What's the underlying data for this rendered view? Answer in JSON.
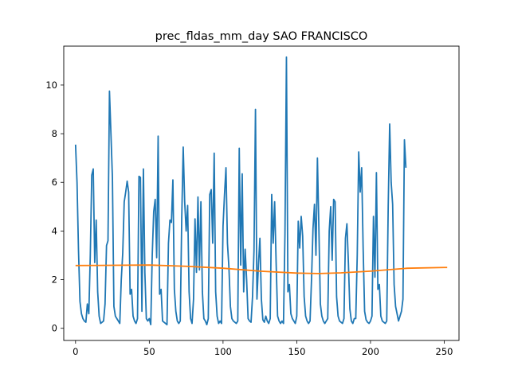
{
  "chart_data": {
    "type": "line",
    "title": "prec_fldas_mm_day SAO FRANCISCO",
    "xlabel": "",
    "ylabel": "",
    "xlim": [
      -8,
      260
    ],
    "ylim": [
      -0.5,
      11.6
    ],
    "xticks": [
      0,
      50,
      100,
      150,
      200,
      250
    ],
    "yticks": [
      0,
      2,
      4,
      6,
      8,
      10
    ],
    "grid": false,
    "legend": "none",
    "colors": {
      "series_1": "#1f77b4",
      "series_2": "#ff7f0e"
    },
    "series": [
      {
        "points": [
          [
            0,
            7.55
          ],
          [
            1,
            6.0
          ],
          [
            2,
            3.2
          ],
          [
            3,
            1.1
          ],
          [
            4,
            0.6
          ],
          [
            5,
            0.4
          ],
          [
            6,
            0.3
          ],
          [
            7,
            0.25
          ],
          [
            8,
            1.0
          ],
          [
            9,
            0.6
          ],
          [
            10,
            3.0
          ],
          [
            11,
            6.3
          ],
          [
            12,
            6.55
          ],
          [
            13,
            2.7
          ],
          [
            14,
            4.45
          ],
          [
            15,
            1.5
          ],
          [
            16,
            0.5
          ],
          [
            17,
            0.2
          ],
          [
            18,
            0.25
          ],
          [
            19,
            0.3
          ],
          [
            20,
            1.0
          ],
          [
            21,
            3.4
          ],
          [
            22,
            3.6
          ],
          [
            23,
            9.75
          ],
          [
            24,
            8.0
          ],
          [
            25,
            6.2
          ],
          [
            26,
            0.9
          ],
          [
            27,
            0.5
          ],
          [
            28,
            0.4
          ],
          [
            29,
            0.3
          ],
          [
            30,
            0.2
          ],
          [
            31,
            2.0
          ],
          [
            32,
            3.1
          ],
          [
            33,
            5.2
          ],
          [
            34,
            5.6
          ],
          [
            35,
            6.05
          ],
          [
            36,
            5.6
          ],
          [
            37,
            1.4
          ],
          [
            38,
            1.6
          ],
          [
            39,
            0.5
          ],
          [
            40,
            0.3
          ],
          [
            41,
            0.2
          ],
          [
            42,
            0.4
          ],
          [
            43,
            6.25
          ],
          [
            44,
            6.2
          ],
          [
            45,
            0.7
          ],
          [
            46,
            6.55
          ],
          [
            47,
            2.3
          ],
          [
            48,
            0.4
          ],
          [
            49,
            0.3
          ],
          [
            50,
            0.4
          ],
          [
            51,
            0.15
          ],
          [
            52,
            3.0
          ],
          [
            53,
            4.8
          ],
          [
            54,
            5.3
          ],
          [
            55,
            2.9
          ],
          [
            56,
            7.9
          ],
          [
            57,
            1.4
          ],
          [
            58,
            1.6
          ],
          [
            59,
            0.3
          ],
          [
            60,
            0.25
          ],
          [
            61,
            0.2
          ],
          [
            62,
            0.15
          ],
          [
            63,
            3.5
          ],
          [
            64,
            4.45
          ],
          [
            65,
            4.35
          ],
          [
            66,
            6.1
          ],
          [
            67,
            1.6
          ],
          [
            68,
            0.7
          ],
          [
            69,
            0.3
          ],
          [
            70,
            0.2
          ],
          [
            71,
            0.3
          ],
          [
            72,
            4.5
          ],
          [
            73,
            7.45
          ],
          [
            74,
            5.2
          ],
          [
            75,
            4.0
          ],
          [
            76,
            5.05
          ],
          [
            77,
            1.5
          ],
          [
            78,
            0.4
          ],
          [
            79,
            0.2
          ],
          [
            80,
            1.2
          ],
          [
            81,
            4.5
          ],
          [
            82,
            2.3
          ],
          [
            83,
            5.4
          ],
          [
            84,
            2.4
          ],
          [
            85,
            5.2
          ],
          [
            86,
            1.5
          ],
          [
            87,
            0.4
          ],
          [
            88,
            0.3
          ],
          [
            89,
            0.15
          ],
          [
            90,
            0.4
          ],
          [
            91,
            5.5
          ],
          [
            92,
            5.7
          ],
          [
            93,
            3.5
          ],
          [
            94,
            7.2
          ],
          [
            95,
            1.5
          ],
          [
            96,
            0.5
          ],
          [
            97,
            0.2
          ],
          [
            98,
            0.3
          ],
          [
            99,
            0.2
          ],
          [
            100,
            4.2
          ],
          [
            101,
            5.5
          ],
          [
            102,
            6.6
          ],
          [
            103,
            3.5
          ],
          [
            104,
            2.5
          ],
          [
            105,
            0.9
          ],
          [
            106,
            0.4
          ],
          [
            107,
            0.3
          ],
          [
            108,
            0.25
          ],
          [
            109,
            0.2
          ],
          [
            110,
            0.3
          ],
          [
            111,
            7.4
          ],
          [
            112,
            2.6
          ],
          [
            113,
            6.35
          ],
          [
            114,
            1.5
          ],
          [
            115,
            3.25
          ],
          [
            116,
            2.0
          ],
          [
            117,
            0.4
          ],
          [
            118,
            0.3
          ],
          [
            119,
            0.25
          ],
          [
            120,
            1.3
          ],
          [
            121,
            3.2
          ],
          [
            122,
            9.0
          ],
          [
            123,
            1.2
          ],
          [
            124,
            2.6
          ],
          [
            125,
            3.7
          ],
          [
            126,
            1.2
          ],
          [
            127,
            0.35
          ],
          [
            128,
            0.25
          ],
          [
            129,
            0.5
          ],
          [
            130,
            0.3
          ],
          [
            131,
            0.2
          ],
          [
            132,
            0.4
          ],
          [
            133,
            5.5
          ],
          [
            134,
            3.5
          ],
          [
            135,
            5.2
          ],
          [
            136,
            2.7
          ],
          [
            137,
            0.5
          ],
          [
            138,
            0.3
          ],
          [
            139,
            0.2
          ],
          [
            140,
            0.3
          ],
          [
            141,
            0.2
          ],
          [
            142,
            3.9
          ],
          [
            143,
            11.15
          ],
          [
            144,
            1.5
          ],
          [
            145,
            1.8
          ],
          [
            146,
            0.6
          ],
          [
            147,
            0.4
          ],
          [
            148,
            0.3
          ],
          [
            149,
            0.2
          ],
          [
            150,
            0.5
          ],
          [
            151,
            4.4
          ],
          [
            152,
            3.3
          ],
          [
            153,
            4.6
          ],
          [
            154,
            3.8
          ],
          [
            155,
            1.3
          ],
          [
            156,
            0.5
          ],
          [
            157,
            0.3
          ],
          [
            158,
            0.2
          ],
          [
            159,
            0.3
          ],
          [
            160,
            2.0
          ],
          [
            161,
            4.1
          ],
          [
            162,
            5.1
          ],
          [
            163,
            3.0
          ],
          [
            164,
            7.0
          ],
          [
            165,
            4.1
          ],
          [
            166,
            1.0
          ],
          [
            167,
            0.5
          ],
          [
            168,
            0.3
          ],
          [
            169,
            0.2
          ],
          [
            170,
            0.3
          ],
          [
            171,
            0.4
          ],
          [
            172,
            4.0
          ],
          [
            173,
            5.0
          ],
          [
            174,
            2.8
          ],
          [
            175,
            5.3
          ],
          [
            176,
            5.2
          ],
          [
            177,
            1.3
          ],
          [
            178,
            0.5
          ],
          [
            179,
            0.3
          ],
          [
            180,
            0.25
          ],
          [
            181,
            0.2
          ],
          [
            182,
            0.4
          ],
          [
            183,
            3.7
          ],
          [
            184,
            4.3
          ],
          [
            185,
            2.7
          ],
          [
            186,
            0.8
          ],
          [
            187,
            0.3
          ],
          [
            188,
            0.2
          ],
          [
            189,
            0.4
          ],
          [
            190,
            0.4
          ],
          [
            191,
            3.0
          ],
          [
            192,
            7.25
          ],
          [
            193,
            5.6
          ],
          [
            194,
            6.6
          ],
          [
            195,
            3.3
          ],
          [
            196,
            0.7
          ],
          [
            197,
            0.35
          ],
          [
            198,
            0.25
          ],
          [
            199,
            0.2
          ],
          [
            200,
            0.3
          ],
          [
            201,
            0.5
          ],
          [
            202,
            4.6
          ],
          [
            203,
            2.1
          ],
          [
            204,
            6.4
          ],
          [
            205,
            1.6
          ],
          [
            206,
            1.8
          ],
          [
            207,
            0.5
          ],
          [
            208,
            0.3
          ],
          [
            209,
            0.25
          ],
          [
            210,
            0.2
          ],
          [
            211,
            0.3
          ],
          [
            212,
            5.0
          ],
          [
            213,
            8.4
          ],
          [
            214,
            6.0
          ],
          [
            215,
            5.1
          ],
          [
            216,
            1.8
          ],
          [
            217,
            0.9
          ],
          [
            218,
            0.6
          ],
          [
            219,
            0.3
          ],
          [
            220,
            0.5
          ],
          [
            221,
            0.7
          ],
          [
            222,
            1.2
          ],
          [
            223,
            7.75
          ],
          [
            224,
            6.6
          ]
        ]
      },
      {
        "points": [
          [
            0,
            2.58
          ],
          [
            25,
            2.59
          ],
          [
            50,
            2.6
          ],
          [
            75,
            2.55
          ],
          [
            100,
            2.47
          ],
          [
            125,
            2.35
          ],
          [
            150,
            2.27
          ],
          [
            165,
            2.25
          ],
          [
            180,
            2.28
          ],
          [
            200,
            2.35
          ],
          [
            225,
            2.47
          ],
          [
            250,
            2.5
          ],
          [
            252,
            2.5
          ]
        ]
      }
    ]
  }
}
